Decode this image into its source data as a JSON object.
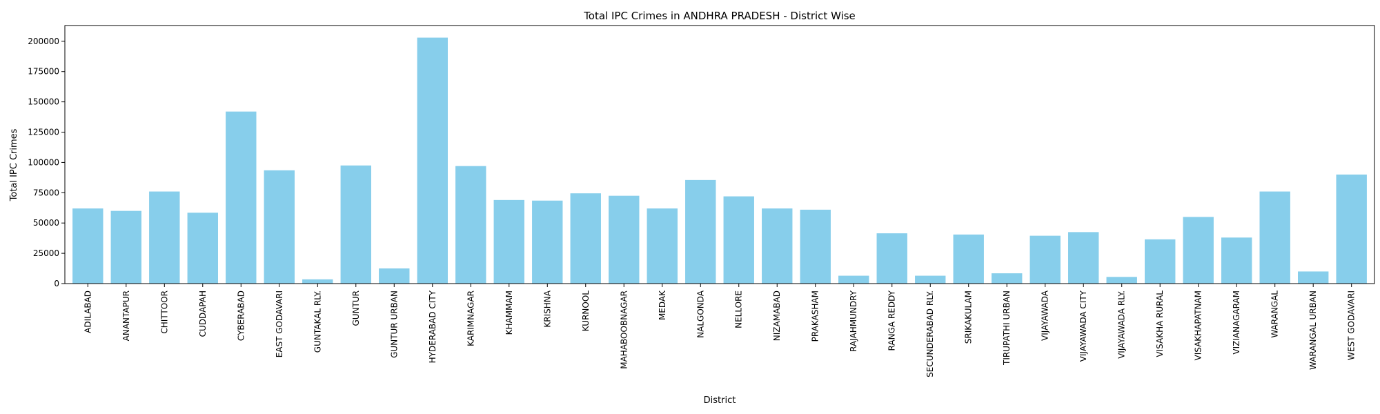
{
  "chart_data": {
    "type": "bar",
    "title": "Total IPC Crimes in ANDHRA PRADESH - District Wise",
    "xlabel": "District",
    "ylabel": "Total IPC Crimes",
    "ylim": [
      0,
      213000
    ],
    "yticks": [
      0,
      25000,
      50000,
      75000,
      100000,
      125000,
      150000,
      175000,
      200000
    ],
    "bar_color": "#87ceeb",
    "grid": false,
    "categories": [
      "ADILABAD",
      "ANANTAPUR",
      "CHITTOOR",
      "CUDDAPAH",
      "CYBERABAD",
      "EAST GODAVARI",
      "GUNTAKAL RLY.",
      "GUNTUR",
      "GUNTUR URBAN",
      "HYDERABAD CITY",
      "KARIMNAGAR",
      "KHAMMAM",
      "KRISHNA",
      "KURNOOL",
      "MAHABOOBNAGAR",
      "MEDAK",
      "NALGONDA",
      "NELLORE",
      "NIZAMABAD",
      "PRAKASHAM",
      "RAJAHMUNDRY",
      "RANGA REDDY",
      "SECUNDERABAD RLY.",
      "SRIKAKULAM",
      "TIRUPATHI URBAN",
      "VIJAYAWADA",
      "VIJAYAWADA CITY",
      "VIJAYAWADA RLY.",
      "VISAKHA RURAL",
      "VISAKHAPATNAM",
      "VIZIANAGARAM",
      "WARANGAL",
      "WARANGAL URBAN",
      "WEST GODAVARI"
    ],
    "values": [
      62000,
      60000,
      76000,
      58500,
      142000,
      93500,
      3500,
      97500,
      12500,
      203000,
      97000,
      69000,
      68500,
      74500,
      72500,
      62000,
      85500,
      72000,
      62000,
      61000,
      6500,
      41500,
      6500,
      40500,
      8500,
      39500,
      42500,
      5500,
      36500,
      55000,
      38000,
      76000,
      10000,
      90000
    ]
  }
}
